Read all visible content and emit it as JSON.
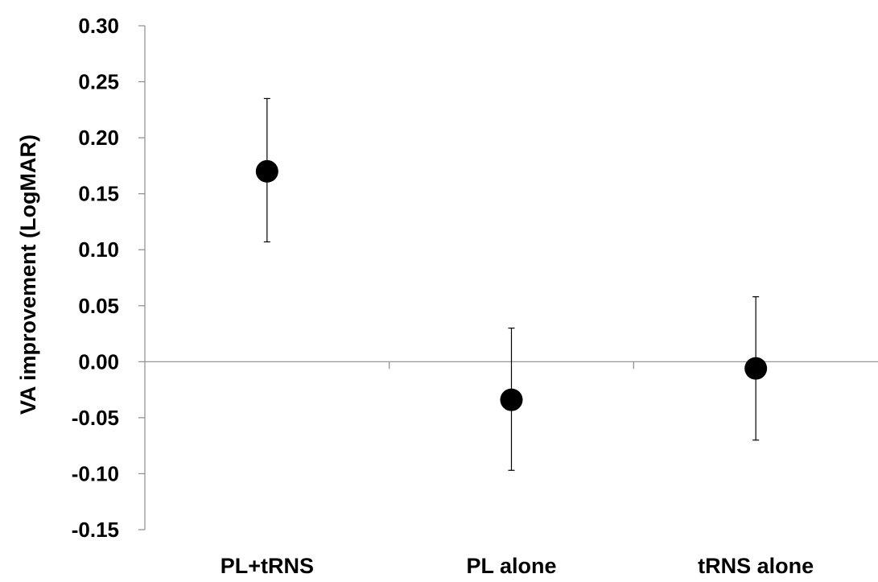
{
  "chart_data": {
    "type": "scatter",
    "title": "",
    "xlabel": "",
    "ylabel": "VA improvement (LogMAR)",
    "categories": [
      "PL+tRNS",
      "PL alone",
      "tRNS alone"
    ],
    "series": [
      {
        "values": [
          0.17,
          -0.034,
          -0.006
        ],
        "error_upper": [
          0.235,
          0.03,
          0.058
        ],
        "error_lower": [
          0.107,
          -0.097,
          -0.07
        ]
      }
    ],
    "ylim": [
      -0.15,
      0.3
    ],
    "yticks": [
      "0.30",
      "0.25",
      "0.20",
      "0.15",
      "0.10",
      "0.05",
      "0.00",
      "-0.05",
      "-0.10",
      "-0.15"
    ],
    "ytick_values": [
      0.3,
      0.25,
      0.2,
      0.15,
      0.1,
      0.05,
      0.0,
      -0.05,
      -0.1,
      -0.15
    ],
    "grid": false,
    "legend": "none",
    "marker_color": "#000000",
    "axis_color": "#8c8c8c"
  }
}
